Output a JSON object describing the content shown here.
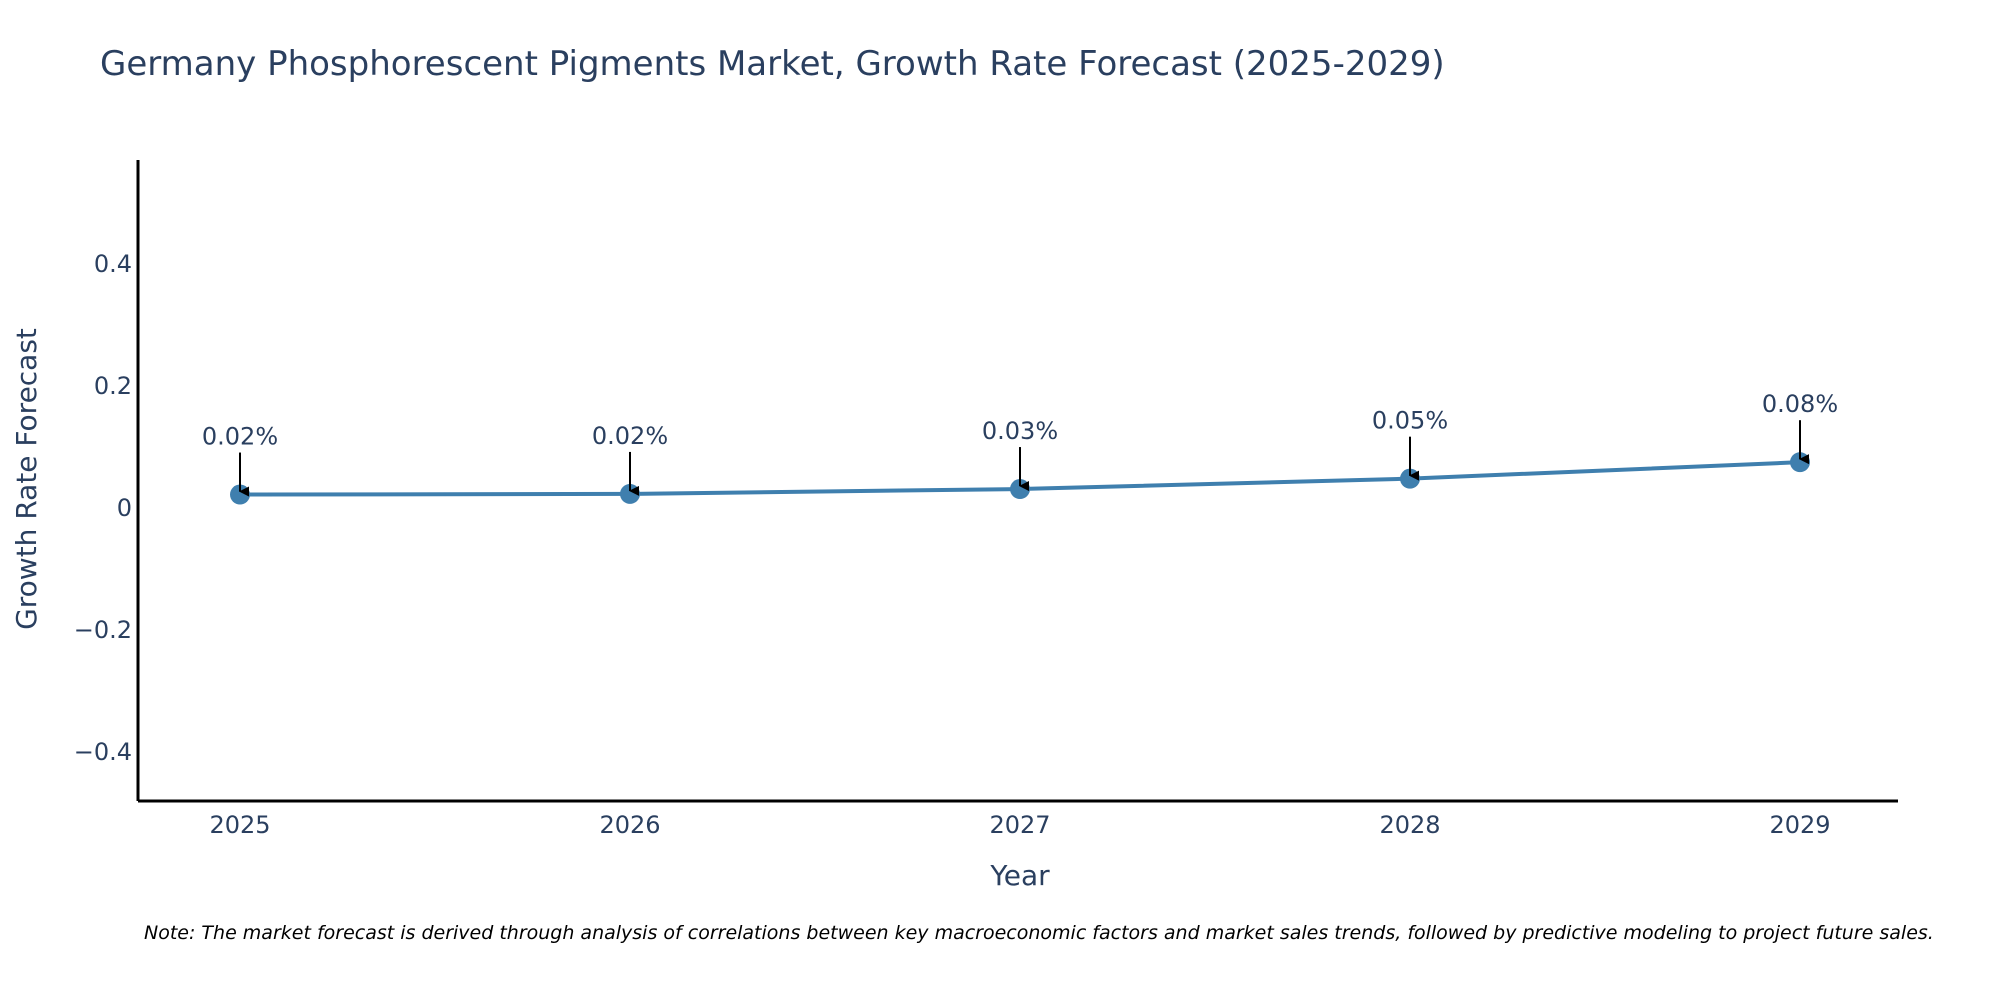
{
  "chart_data": {
    "type": "line",
    "title": "Germany Phosphorescent Pigments Market, Growth Rate Forecast (2025-2029)",
    "xlabel": "Year",
    "ylabel": "Growth Rate Forecast",
    "categories": [
      "2025",
      "2026",
      "2027",
      "2028",
      "2029"
    ],
    "series": [
      {
        "name": "Growth Rate Forecast",
        "values": [
          0.022,
          0.023,
          0.031,
          0.048,
          0.075
        ],
        "labels": [
          "0.02%",
          "0.02%",
          "0.03%",
          "0.05%",
          "0.08%"
        ]
      }
    ],
    "ylim": [
      -0.48,
      0.57
    ],
    "yticks": [
      0.4,
      0.2,
      0,
      -0.2,
      -0.4
    ],
    "ytick_labels": [
      "0.4",
      "0.2",
      "0",
      "−0.2",
      "−0.4"
    ],
    "grid": false,
    "line_color": "#3f7fae",
    "axis_color": "#000000",
    "annotation_arrows": true
  },
  "note": "Note: The market forecast is derived through analysis of correlations between key macroeconomic factors and market sales trends, followed by predictive modeling to project future sales."
}
